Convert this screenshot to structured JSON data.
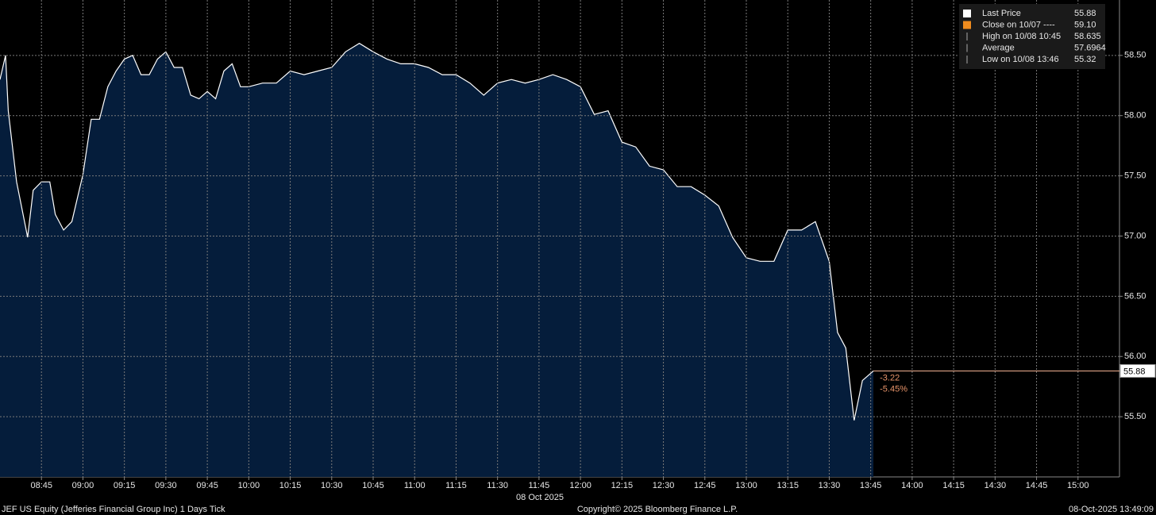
{
  "chart_data": {
    "type": "area",
    "title": "JEF US Equity (Jefferies Financial Group Inc) 1 Days Tick",
    "x_label": "08 Oct 2025",
    "copyright": "Copyright© 2025 Bloomberg Finance L.P.",
    "timestamp": "08-Oct-2025 13:49:09",
    "color": "#ffffff",
    "fill": "#051d3b",
    "grid": true,
    "xlim": [
      "08:30",
      "15:15"
    ],
    "xticks": [
      "08:45",
      "09:00",
      "09:15",
      "09:30",
      "09:45",
      "10:00",
      "10:15",
      "10:30",
      "10:45",
      "11:00",
      "11:15",
      "11:30",
      "11:45",
      "12:00",
      "12:15",
      "12:30",
      "12:45",
      "13:00",
      "13:15",
      "13:30",
      "13:45",
      "14:00",
      "14:15",
      "14:30",
      "14:45",
      "15:00"
    ],
    "ylim": [
      55.0,
      58.96
    ],
    "yticks": [
      {
        "value": 55.5,
        "label": "55.50"
      },
      {
        "value": 56,
        "label": "56.00"
      },
      {
        "value": 56.5,
        "label": "56.50"
      },
      {
        "value": 57,
        "label": "57.00"
      },
      {
        "value": 57.5,
        "label": "57.50"
      },
      {
        "value": 58,
        "label": "58.00"
      },
      {
        "value": 58.5,
        "label": "58.50"
      }
    ],
    "x": [
      "08:30",
      "08:32",
      "08:33",
      "08:36",
      "08:40",
      "08:42",
      "08:45",
      "08:48",
      "08:50",
      "08:53",
      "08:56",
      "09:00",
      "09:03",
      "09:06",
      "09:09",
      "09:12",
      "09:15",
      "09:18",
      "09:21",
      "09:24",
      "09:27",
      "09:30",
      "09:33",
      "09:36",
      "09:39",
      "09:42",
      "09:45",
      "09:48",
      "09:51",
      "09:54",
      "09:57",
      "10:00",
      "10:05",
      "10:10",
      "10:15",
      "10:20",
      "10:25",
      "10:30",
      "10:35",
      "10:40",
      "10:45",
      "10:50",
      "10:55",
      "11:00",
      "11:05",
      "11:10",
      "11:15",
      "11:20",
      "11:25",
      "11:30",
      "11:35",
      "11:40",
      "11:45",
      "11:50",
      "11:55",
      "12:00",
      "12:05",
      "12:10",
      "12:15",
      "12:20",
      "12:25",
      "12:30",
      "12:35",
      "12:40",
      "12:45",
      "12:50",
      "12:55",
      "13:00",
      "13:05",
      "13:10",
      "13:15",
      "13:20",
      "13:25",
      "13:30",
      "13:33",
      "13:36",
      "13:39",
      "13:42",
      "13:46"
    ],
    "series": [
      {
        "name": "Last Price",
        "values": [
          58.3,
          58.5,
          58.04,
          57.45,
          56.99,
          57.38,
          57.45,
          57.45,
          57.18,
          57.05,
          57.12,
          57.51,
          57.97,
          57.97,
          58.24,
          58.37,
          58.47,
          58.5,
          58.34,
          58.34,
          58.47,
          58.53,
          58.4,
          58.4,
          58.17,
          58.14,
          58.2,
          58.14,
          58.37,
          58.43,
          58.24,
          58.24,
          58.27,
          58.27,
          58.37,
          58.34,
          58.37,
          58.4,
          58.53,
          58.6,
          58.53,
          58.47,
          58.43,
          58.43,
          58.4,
          58.34,
          58.34,
          58.27,
          58.17,
          58.27,
          58.3,
          58.27,
          58.3,
          58.34,
          58.3,
          58.24,
          58.01,
          58.04,
          57.78,
          57.74,
          57.58,
          57.55,
          57.41,
          57.41,
          57.34,
          57.25,
          56.99,
          56.82,
          56.79,
          56.79,
          57.05,
          57.05,
          57.12,
          56.79,
          56.2,
          56.07,
          55.47,
          55.8,
          55.88
        ]
      }
    ],
    "last_price": {
      "value": 55.88,
      "label": "55.88"
    },
    "change": [
      "-3.22",
      "-5.45%"
    ],
    "legend": [
      {
        "label": "Last Price",
        "value": "55.88",
        "color": "#ffffff"
      },
      {
        "label": "Close on 10/07 ----",
        "value": "59.10",
        "color": "#f08c1e"
      },
      {
        "label": "High on 10/08 10:45",
        "value": "58.635",
        "color": "#aaaaaa"
      },
      {
        "label": "Average",
        "value": "57.6964",
        "color": "#aaaaaa"
      },
      {
        "label": "Low on 10/08 13:46",
        "value": "55.32",
        "color": "#aaaaaa"
      }
    ]
  }
}
